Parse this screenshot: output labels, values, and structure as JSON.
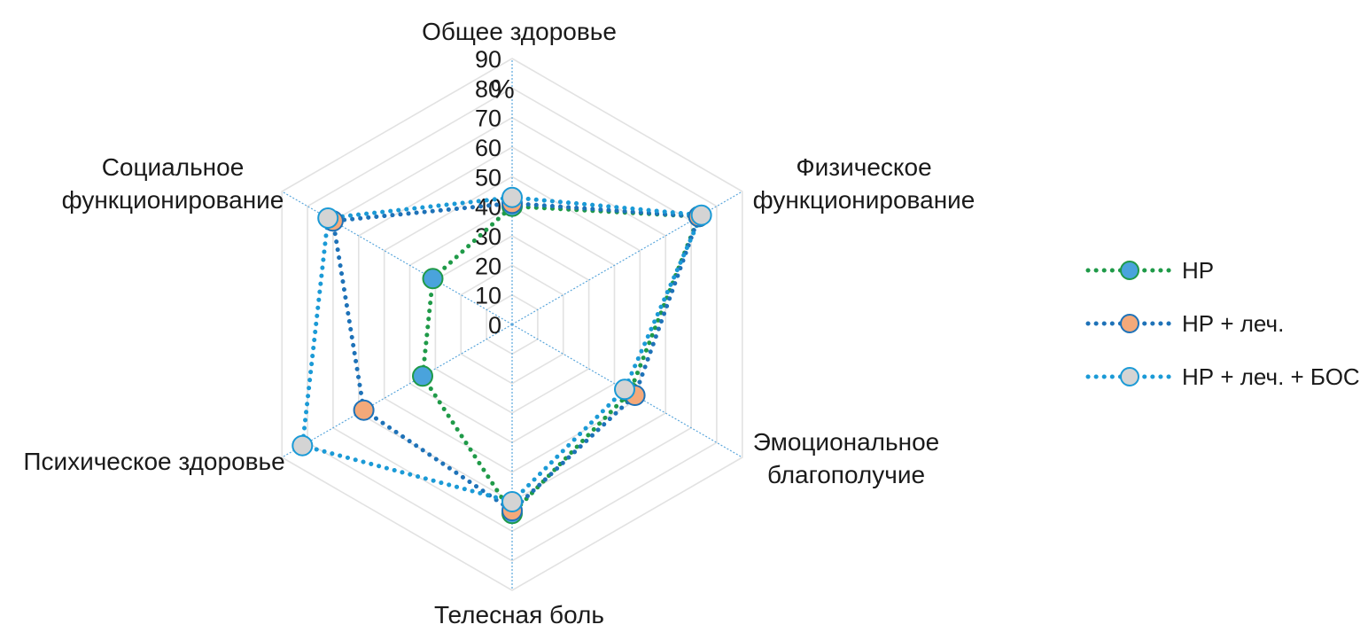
{
  "chart_data": {
    "type": "radar",
    "title": "",
    "axes": [
      "Общее здоровье",
      "Физическое функционирование",
      "Эмоциональное благополучие",
      "Телесная боль",
      "Психическое здоровье",
      "Социальное функционирование"
    ],
    "axis_label_lines": [
      [
        "Общее здоровье"
      ],
      [
        "Физическое",
        "функционирование"
      ],
      [
        "Эмоциональное",
        "благополучие"
      ],
      [
        "Телесная боль"
      ],
      [
        "Психическое здоровье"
      ],
      [
        "Социальное",
        "функционирование"
      ]
    ],
    "range": [
      0,
      90
    ],
    "ticks": [
      0,
      10,
      20,
      30,
      40,
      50,
      60,
      70,
      80,
      90
    ],
    "unit": "%",
    "grid": true,
    "legend_position": "right",
    "series": [
      {
        "name": "НР",
        "values": [
          40,
          73,
          46,
          64,
          35,
          31
        ],
        "line_color": "#1f9a48",
        "marker_fill": "#4aa3dc",
        "marker_stroke": "#1f9a48"
      },
      {
        "name": "НР + леч.",
        "values": [
          41,
          73,
          48,
          63,
          58,
          70
        ],
        "line_color": "#1e72b8",
        "marker_fill": "#f4a97a",
        "marker_stroke": "#1e72b8"
      },
      {
        "name": "НР + леч. + БОС",
        "values": [
          43,
          74,
          44,
          60,
          82,
          72
        ],
        "line_color": "#1b9ad6",
        "marker_fill": "#d4d4d4",
        "marker_stroke": "#1b9ad6"
      }
    ]
  }
}
